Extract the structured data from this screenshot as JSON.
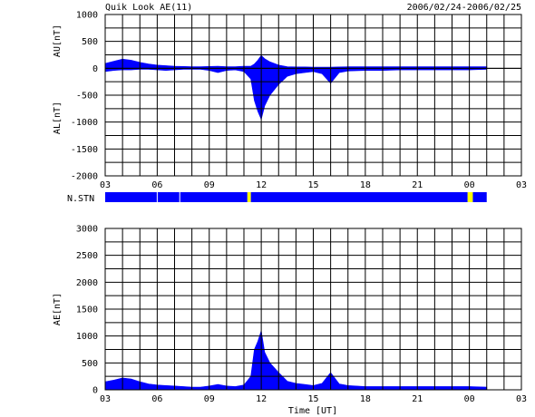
{
  "header": {
    "title": "Quik Look AE(11)",
    "date_range": "2006/02/24-2006/02/25"
  },
  "colors": {
    "data": "#0000ff",
    "gap": "#ffff00",
    "grid": "#000000",
    "background": "#ffffff"
  },
  "chart_data": [
    {
      "type": "area",
      "panel": "AU/AL",
      "ylabel_upper": "AU[nT]",
      "ylabel_lower": "AL[nT]",
      "xlabel": "",
      "yticks": [
        1000,
        500,
        0,
        -500,
        -1000,
        -1500,
        -2000
      ],
      "ylim": [
        -2000,
        1000
      ],
      "xlim": [
        3,
        27
      ],
      "xtick_labels": [
        "03",
        "06",
        "09",
        "12",
        "15",
        "18",
        "21",
        "00",
        "03"
      ],
      "grid": true,
      "series": [
        {
          "kind": "AU-envelope",
          "x": [
            3.0,
            3.5,
            4.0,
            4.5,
            5.0,
            5.5,
            6.0,
            6.5,
            7.0,
            7.5,
            8.0,
            8.5,
            9.0,
            9.5,
            10.0,
            10.5,
            11.0,
            11.4,
            11.6,
            11.8,
            12.0,
            12.2,
            12.5,
            13.0,
            13.5,
            14.0,
            14.5,
            15.0,
            15.5,
            16.0,
            16.5,
            17.0,
            18.0,
            19.0,
            20.0,
            21.0,
            22.0,
            23.0,
            24.0,
            25.0
          ],
          "y": [
            90,
            130,
            170,
            150,
            110,
            80,
            60,
            50,
            40,
            35,
            30,
            30,
            35,
            40,
            30,
            30,
            40,
            40,
            80,
            150,
            240,
            180,
            120,
            60,
            30,
            25,
            25,
            20,
            20,
            20,
            25,
            30,
            30,
            30,
            30,
            30,
            30,
            30,
            30,
            30
          ]
        },
        {
          "kind": "AL-envelope",
          "x": [
            3.0,
            3.5,
            4.0,
            4.5,
            5.0,
            5.5,
            6.0,
            6.5,
            7.0,
            7.5,
            8.0,
            8.5,
            9.0,
            9.5,
            10.0,
            10.5,
            11.0,
            11.4,
            11.6,
            11.8,
            12.0,
            12.2,
            12.5,
            13.0,
            13.5,
            14.0,
            14.5,
            15.0,
            15.5,
            16.0,
            16.5,
            17.0,
            18.0,
            19.0,
            20.0,
            21.0,
            22.0,
            23.0,
            24.0,
            25.0
          ],
          "y": [
            -60,
            -40,
            -30,
            -30,
            -20,
            -20,
            -30,
            -40,
            -30,
            -20,
            -20,
            -20,
            -40,
            -80,
            -40,
            -30,
            -60,
            -200,
            -600,
            -800,
            -950,
            -700,
            -500,
            -300,
            -150,
            -100,
            -80,
            -60,
            -100,
            -280,
            -80,
            -50,
            -40,
            -40,
            -30,
            -30,
            -30,
            -30,
            -30,
            -20
          ]
        }
      ]
    },
    {
      "type": "bar",
      "panel": "N.STN",
      "label": "N.STN",
      "segments": [
        {
          "start": 3.0,
          "end": 6.0,
          "status": "data"
        },
        {
          "start": 6.0,
          "end": 7.3,
          "status": "data"
        },
        {
          "start": 7.3,
          "end": 11.2,
          "status": "data"
        },
        {
          "start": 11.2,
          "end": 11.4,
          "status": "gap"
        },
        {
          "start": 11.4,
          "end": 23.9,
          "status": "data"
        },
        {
          "start": 23.9,
          "end": 24.2,
          "status": "gap"
        },
        {
          "start": 24.2,
          "end": 25.0,
          "status": "data"
        }
      ]
    },
    {
      "type": "area",
      "panel": "AE",
      "ylabel": "AE[nT]",
      "xlabel": "Time [UT]",
      "yticks": [
        3000,
        2500,
        2000,
        1500,
        1000,
        500,
        0
      ],
      "ylim": [
        0,
        3000
      ],
      "xlim": [
        3,
        27
      ],
      "xtick_labels": [
        "03",
        "06",
        "09",
        "12",
        "15",
        "18",
        "21",
        "00",
        "03"
      ],
      "grid": true,
      "series": [
        {
          "kind": "AE",
          "x": [
            3.0,
            3.5,
            4.0,
            4.5,
            5.0,
            5.5,
            6.0,
            6.5,
            7.0,
            7.5,
            8.0,
            8.5,
            9.0,
            9.5,
            10.0,
            10.5,
            11.0,
            11.4,
            11.6,
            11.8,
            12.0,
            12.2,
            12.5,
            13.0,
            13.5,
            14.0,
            14.5,
            15.0,
            15.5,
            16.0,
            16.5,
            17.0,
            18.0,
            19.0,
            20.0,
            21.0,
            22.0,
            23.0,
            24.0,
            25.0
          ],
          "y": [
            150,
            180,
            220,
            200,
            150,
            110,
            90,
            80,
            70,
            60,
            50,
            50,
            70,
            100,
            70,
            60,
            90,
            250,
            750,
            900,
            1100,
            700,
            500,
            320,
            160,
            120,
            100,
            80,
            120,
            320,
            110,
            80,
            60,
            60,
            60,
            60,
            60,
            60,
            60,
            50
          ]
        }
      ]
    }
  ]
}
